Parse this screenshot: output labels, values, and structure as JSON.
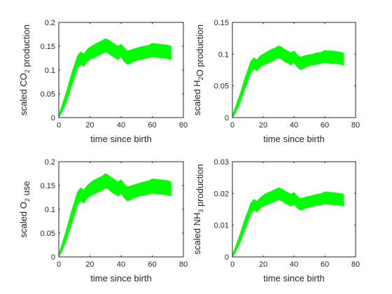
{
  "figure": {
    "band_color": "#00ff00",
    "axis_color": "#262626"
  },
  "chart_data": [
    {
      "type": "area",
      "xlabel": "time since birth",
      "ylabel_parts": [
        {
          "text": "scaled CO",
          "sub": false
        },
        {
          "text": "2",
          "sub": true
        },
        {
          "text": " production",
          "sub": false
        }
      ],
      "xlim": [
        0,
        80
      ],
      "ylim": [
        0,
        0.2
      ],
      "xticks": [
        0,
        20,
        40,
        60,
        80
      ],
      "yticks": [
        0,
        0.05,
        0.1,
        0.15,
        0.2
      ],
      "xtick_labels": [
        "0",
        "20",
        "40",
        "60",
        "80"
      ],
      "ytick_labels": [
        "0",
        "0.05",
        "0.1",
        "0.15",
        "0.2"
      ],
      "grid": false,
      "series": [
        {
          "x": [
            0,
            2,
            5,
            8,
            10,
            12,
            14,
            16,
            18,
            20,
            22,
            25,
            28,
            30,
            32,
            34,
            36,
            38,
            40,
            42,
            44,
            46,
            48,
            50,
            52,
            55,
            58,
            60,
            62,
            65,
            68,
            70,
            72
          ],
          "low": [
            0,
            0.012,
            0.035,
            0.065,
            0.085,
            0.105,
            0.112,
            0.108,
            0.118,
            0.122,
            0.125,
            0.13,
            0.135,
            0.138,
            0.135,
            0.13,
            0.126,
            0.122,
            0.128,
            0.118,
            0.112,
            0.114,
            0.118,
            0.12,
            0.122,
            0.124,
            0.126,
            0.128,
            0.127,
            0.126,
            0.125,
            0.124,
            0.122
          ],
          "high": [
            0.005,
            0.025,
            0.055,
            0.09,
            0.11,
            0.13,
            0.138,
            0.133,
            0.142,
            0.148,
            0.152,
            0.157,
            0.162,
            0.166,
            0.163,
            0.158,
            0.154,
            0.15,
            0.154,
            0.146,
            0.14,
            0.142,
            0.144,
            0.146,
            0.148,
            0.15,
            0.152,
            0.156,
            0.155,
            0.154,
            0.153,
            0.152,
            0.15
          ]
        }
      ]
    },
    {
      "type": "area",
      "xlabel": "time since birth",
      "ylabel_parts": [
        {
          "text": "scaled H",
          "sub": false
        },
        {
          "text": "2",
          "sub": true
        },
        {
          "text": "O production",
          "sub": false
        }
      ],
      "xlim": [
        0,
        80
      ],
      "ylim": [
        0,
        0.15
      ],
      "xticks": [
        0,
        20,
        40,
        60,
        80
      ],
      "yticks": [
        0,
        0.05,
        0.1,
        0.15
      ],
      "xtick_labels": [
        "0",
        "20",
        "40",
        "60",
        "80"
      ],
      "ytick_labels": [
        "0",
        "0.05",
        "0.1",
        "0.15"
      ],
      "grid": false,
      "series": [
        {
          "x": [
            0,
            2,
            5,
            8,
            10,
            12,
            14,
            16,
            18,
            20,
            22,
            25,
            28,
            30,
            32,
            34,
            36,
            38,
            40,
            42,
            44,
            46,
            48,
            50,
            52,
            55,
            58,
            60,
            62,
            65,
            68,
            70,
            72
          ],
          "low": [
            0,
            0.008,
            0.024,
            0.045,
            0.058,
            0.072,
            0.077,
            0.074,
            0.08,
            0.083,
            0.085,
            0.088,
            0.092,
            0.094,
            0.092,
            0.088,
            0.086,
            0.083,
            0.087,
            0.08,
            0.076,
            0.077,
            0.08,
            0.082,
            0.083,
            0.084,
            0.086,
            0.087,
            0.086,
            0.085,
            0.085,
            0.084,
            0.083
          ],
          "high": [
            0.003,
            0.017,
            0.037,
            0.061,
            0.075,
            0.089,
            0.094,
            0.091,
            0.097,
            0.1,
            0.103,
            0.107,
            0.11,
            0.113,
            0.111,
            0.107,
            0.105,
            0.102,
            0.105,
            0.099,
            0.095,
            0.097,
            0.098,
            0.099,
            0.1,
            0.102,
            0.103,
            0.106,
            0.105,
            0.105,
            0.104,
            0.103,
            0.102
          ]
        }
      ]
    },
    {
      "type": "area",
      "xlabel": "time since birth",
      "ylabel_parts": [
        {
          "text": "scaled O",
          "sub": false
        },
        {
          "text": "2",
          "sub": true
        },
        {
          "text": " use",
          "sub": false
        }
      ],
      "xlim": [
        0,
        80
      ],
      "ylim": [
        0,
        0.2
      ],
      "xticks": [
        0,
        20,
        40,
        60,
        80
      ],
      "yticks": [
        0,
        0.05,
        0.1,
        0.15,
        0.2
      ],
      "xtick_labels": [
        "0",
        "20",
        "40",
        "60",
        "80"
      ],
      "ytick_labels": [
        "0",
        "0.05",
        "0.1",
        "0.15",
        "0.2"
      ],
      "grid": false,
      "series": [
        {
          "x": [
            0,
            2,
            5,
            8,
            10,
            12,
            14,
            16,
            18,
            20,
            22,
            25,
            28,
            30,
            32,
            34,
            36,
            38,
            40,
            42,
            44,
            46,
            48,
            50,
            52,
            55,
            58,
            60,
            62,
            65,
            68,
            70,
            72
          ],
          "low": [
            0,
            0.013,
            0.037,
            0.068,
            0.088,
            0.11,
            0.118,
            0.113,
            0.123,
            0.128,
            0.131,
            0.136,
            0.141,
            0.145,
            0.142,
            0.136,
            0.132,
            0.128,
            0.134,
            0.124,
            0.118,
            0.12,
            0.124,
            0.126,
            0.128,
            0.13,
            0.132,
            0.134,
            0.133,
            0.132,
            0.131,
            0.13,
            0.128
          ],
          "high": [
            0.005,
            0.026,
            0.058,
            0.094,
            0.115,
            0.136,
            0.145,
            0.14,
            0.149,
            0.155,
            0.16,
            0.165,
            0.17,
            0.175,
            0.171,
            0.166,
            0.162,
            0.157,
            0.162,
            0.153,
            0.147,
            0.149,
            0.151,
            0.153,
            0.155,
            0.158,
            0.16,
            0.164,
            0.163,
            0.162,
            0.161,
            0.16,
            0.158
          ]
        }
      ]
    },
    {
      "type": "area",
      "xlabel": "time since birth",
      "ylabel_parts": [
        {
          "text": "scaled NH",
          "sub": false
        },
        {
          "text": "3",
          "sub": true
        },
        {
          "text": " production",
          "sub": false
        }
      ],
      "xlim": [
        0,
        80
      ],
      "ylim": [
        0,
        0.03
      ],
      "xticks": [
        0,
        20,
        40,
        60,
        80
      ],
      "yticks": [
        0,
        0.01,
        0.02,
        0.03
      ],
      "xtick_labels": [
        "0",
        "20",
        "40",
        "60",
        "80"
      ],
      "ytick_labels": [
        "0",
        "0.01",
        "0.02",
        "0.03"
      ],
      "grid": false,
      "series": [
        {
          "x": [
            0,
            2,
            5,
            8,
            10,
            12,
            14,
            16,
            18,
            20,
            22,
            25,
            28,
            30,
            32,
            34,
            36,
            38,
            40,
            42,
            44,
            46,
            48,
            50,
            52,
            55,
            58,
            60,
            62,
            65,
            68,
            70,
            72
          ],
          "low": [
            0,
            0.0016,
            0.0046,
            0.0085,
            0.011,
            0.0138,
            0.0148,
            0.0142,
            0.0154,
            0.016,
            0.0164,
            0.017,
            0.0176,
            0.018,
            0.0177,
            0.017,
            0.0165,
            0.016,
            0.0167,
            0.0155,
            0.0148,
            0.015,
            0.0155,
            0.0157,
            0.016,
            0.0162,
            0.0165,
            0.0167,
            0.0166,
            0.0165,
            0.0164,
            0.0163,
            0.016
          ],
          "high": [
            0.0006,
            0.0032,
            0.0072,
            0.0117,
            0.0143,
            0.017,
            0.0181,
            0.0175,
            0.0186,
            0.0194,
            0.02,
            0.0206,
            0.0213,
            0.0218,
            0.0214,
            0.0208,
            0.0203,
            0.0197,
            0.0203,
            0.0191,
            0.0184,
            0.0186,
            0.0189,
            0.0191,
            0.0194,
            0.0197,
            0.02,
            0.0205,
            0.0204,
            0.0203,
            0.0201,
            0.02,
            0.0198
          ]
        }
      ]
    }
  ]
}
